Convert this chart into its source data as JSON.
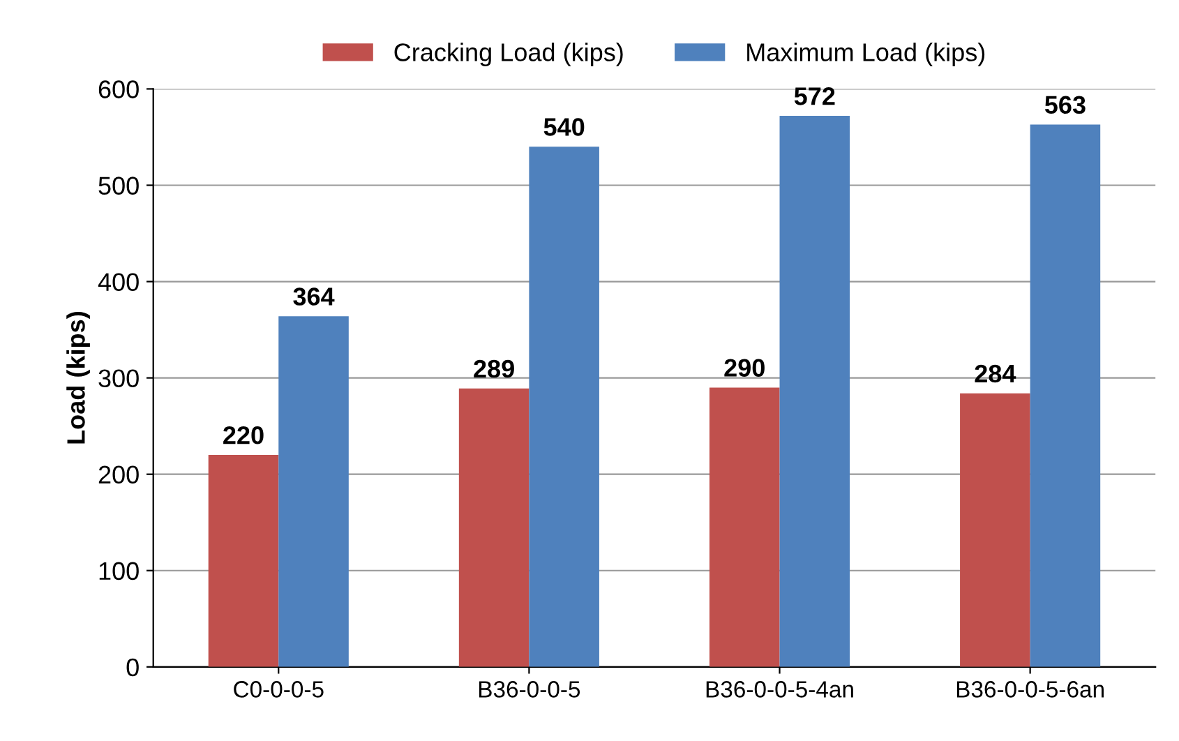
{
  "chart_data": {
    "type": "bar",
    "ylabel": "Load (kips)",
    "categories": [
      "C0-0-0-5",
      "B36-0-0-5",
      "B36-0-0-5-4an",
      "B36-0-0-5-6an"
    ],
    "series": [
      {
        "name": "Cracking Load (kips)",
        "color": "#c0504d",
        "values": [
          220,
          289,
          290,
          284
        ]
      },
      {
        "name": "Maximum Load (kips)",
        "color": "#4f81bd",
        "values": [
          364,
          540,
          572,
          563
        ]
      }
    ],
    "ylim": [
      0,
      600
    ],
    "yticks": [
      0,
      100,
      200,
      300,
      400,
      500,
      600
    ],
    "grid": "y",
    "legend": "top",
    "data_labels": true
  }
}
